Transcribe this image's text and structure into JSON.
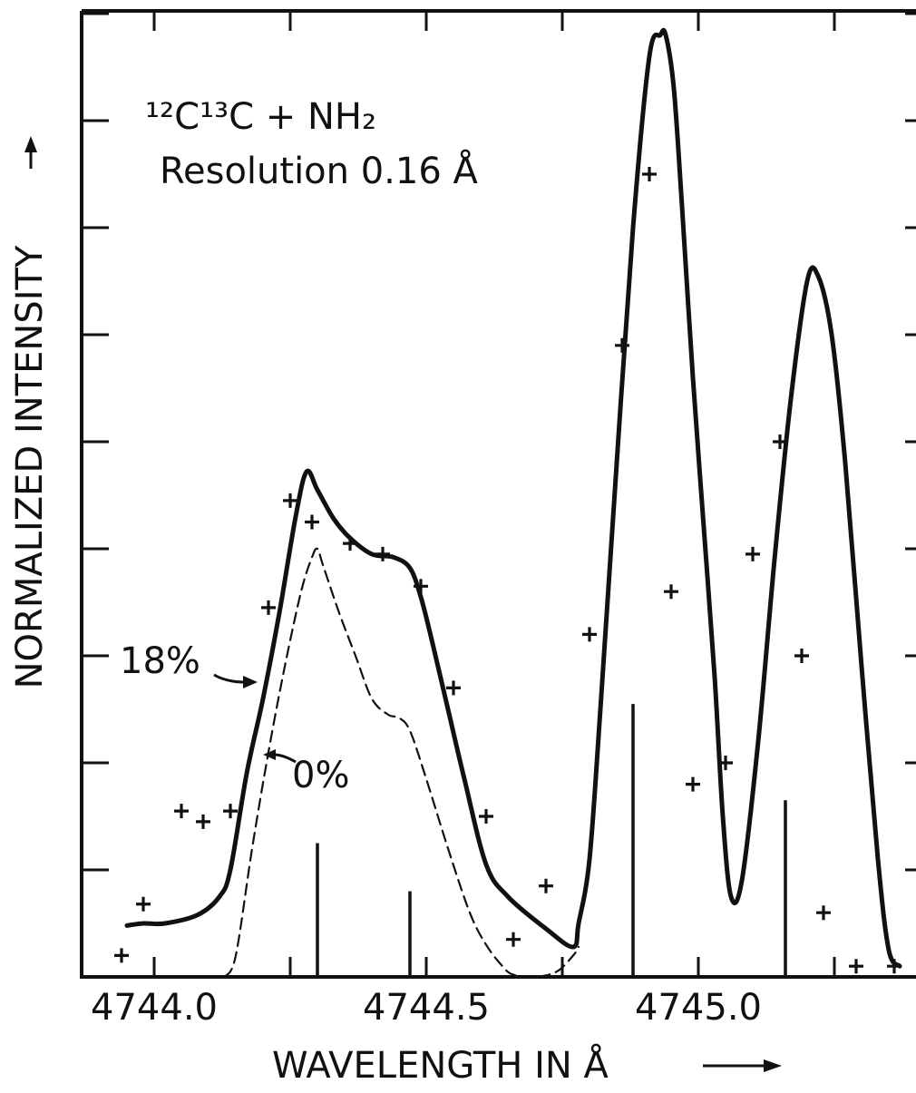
{
  "chart_data": {
    "type": "line",
    "title": "",
    "annotation_species": "¹²C¹³C + NH₂",
    "annotation_resolution": "Resolution 0.16 Å",
    "xlabel": "WAVELENGTH IN Å",
    "ylabel": "NORMALIZED INTENSITY",
    "xlim": [
      4743.88,
      4745.55
    ],
    "ylim": [
      0,
      9.1
    ],
    "xticks": [
      4744.0,
      4744.5,
      4745.0
    ],
    "xtick_labels": [
      "4744.0",
      "4744.5",
      "4745.0"
    ],
    "minor_xticks": [
      4744.25,
      4744.75,
      4745.25
    ],
    "yticks": [
      1,
      2,
      3,
      4,
      5,
      6,
      7,
      8,
      9
    ],
    "grid": false,
    "series": [
      {
        "name": "18%",
        "style": "solid",
        "x": [
          4743.95,
          4743.98,
          4744.02,
          4744.08,
          4744.12,
          4744.14,
          4744.17,
          4744.2,
          4744.23,
          4744.26,
          4744.28,
          4744.3,
          4744.33,
          4744.36,
          4744.4,
          4744.44,
          4744.47,
          4744.49,
          4744.51,
          4744.54,
          4744.57,
          4744.61,
          4744.65,
          4744.72,
          4744.77,
          4744.78,
          4744.8,
          4744.82,
          4744.85,
          4744.88,
          4744.91,
          4744.93,
          4744.94,
          4744.955,
          4744.97,
          4744.99,
          4745.01,
          4745.03,
          4745.045,
          4745.06,
          4745.08,
          4745.11,
          4745.14,
          4745.17,
          4745.2,
          4745.22,
          4745.245,
          4745.27,
          4745.3,
          4745.33,
          4745.35,
          4745.37
        ],
        "y": [
          0.48,
          0.5,
          0.5,
          0.58,
          0.75,
          1.0,
          1.9,
          2.6,
          3.4,
          4.3,
          4.72,
          4.55,
          4.28,
          4.1,
          3.95,
          3.92,
          3.82,
          3.55,
          3.15,
          2.5,
          1.85,
          1.05,
          0.75,
          0.45,
          0.28,
          0.5,
          1.1,
          2.5,
          4.8,
          7.0,
          8.6,
          8.8,
          8.8,
          8.3,
          7.2,
          5.6,
          4.2,
          2.8,
          1.5,
          0.75,
          0.9,
          2.2,
          3.9,
          5.4,
          6.5,
          6.55,
          6.0,
          4.8,
          2.9,
          1.1,
          0.25,
          0.1
        ]
      },
      {
        "name": "0%",
        "style": "dashed",
        "x": [
          4744.13,
          4744.15,
          4744.18,
          4744.21,
          4744.24,
          4744.27,
          4744.29,
          4744.3,
          4744.31,
          4744.34,
          4744.37,
          4744.4,
          4744.43,
          4744.45,
          4744.47,
          4744.5,
          4744.54,
          4744.58,
          4744.61,
          4744.64,
          4744.66,
          4744.7,
          4744.74,
          4744.77,
          4744.78
        ],
        "y": [
          0.0,
          0.2,
          1.2,
          2.1,
          2.9,
          3.6,
          3.92,
          4.0,
          3.85,
          3.4,
          3.0,
          2.6,
          2.45,
          2.42,
          2.3,
          1.85,
          1.2,
          0.6,
          0.3,
          0.1,
          0.02,
          0.0,
          0.05,
          0.2,
          0.28
        ]
      }
    ],
    "measured_points": {
      "name": "+",
      "x": [
        4743.94,
        4743.98,
        4744.05,
        4744.09,
        4744.14,
        4744.21,
        4744.25,
        4744.29,
        4744.36,
        4744.42,
        4744.49,
        4744.55,
        4744.61,
        4744.66,
        4744.72,
        4744.8,
        4744.86,
        4744.91,
        4744.95,
        4744.99,
        4745.05,
        4745.1,
        4745.15,
        4745.19,
        4745.23,
        4745.29,
        4745.36
      ],
      "y": [
        0.2,
        0.68,
        1.55,
        1.45,
        1.55,
        3.45,
        4.45,
        4.25,
        4.05,
        3.95,
        3.65,
        2.7,
        1.5,
        0.35,
        0.85,
        3.2,
        5.9,
        7.5,
        3.6,
        1.8,
        2.0,
        3.95,
        5.0,
        3.0,
        0.6,
        0.1,
        0.1
      ],
      "source_note": ""
    },
    "stick_lines": {
      "x": [
        4744.3,
        4744.47,
        4744.88,
        4745.16
      ],
      "y": [
        1.25,
        0.8,
        2.55,
        1.65
      ]
    },
    "curve_labels": [
      {
        "text": "18%",
        "series": "18%"
      },
      {
        "text": "0%",
        "series": "0%"
      }
    ]
  }
}
